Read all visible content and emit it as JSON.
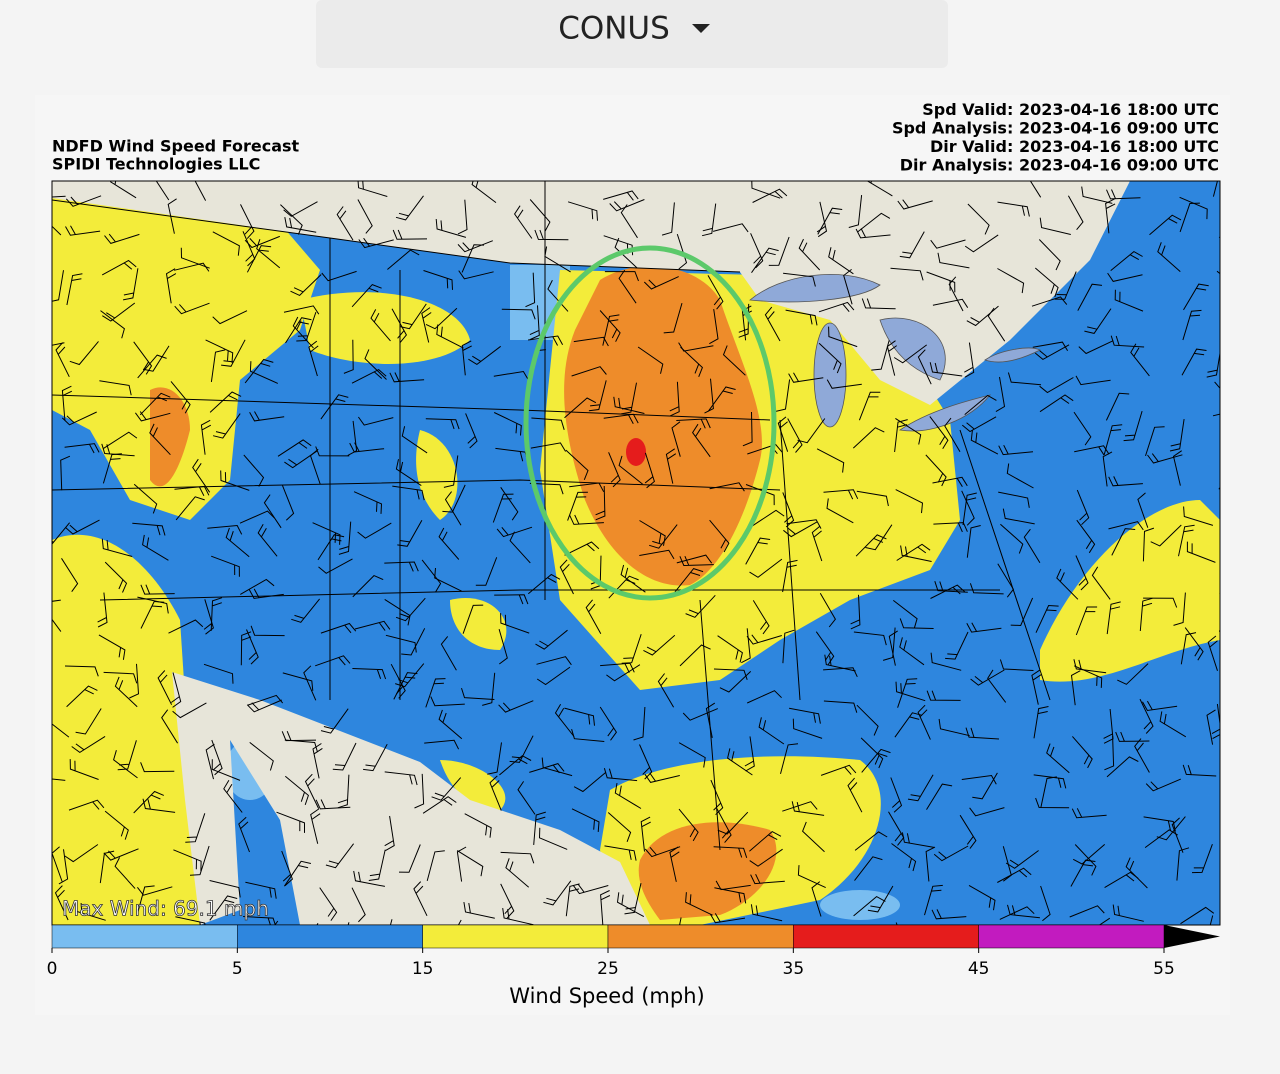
{
  "header": {
    "region": "CONUS"
  },
  "map": {
    "title": [
      "NDFD Wind Speed Forecast",
      "SPIDI Technologies LLC"
    ],
    "info": [
      {
        "label": "Spd Valid:",
        "value": "2023-04-16 18:00 UTC"
      },
      {
        "label": "Spd Analysis:",
        "value": "2023-04-16 09:00 UTC"
      },
      {
        "label": "Dir Valid:",
        "value": "2023-04-16 18:00 UTC"
      },
      {
        "label": "Dir Analysis:",
        "value": "2023-04-16 09:00 UTC"
      }
    ],
    "max_wind": "Max Wind: 69.1 mph"
  },
  "colorbar": {
    "ticks": [
      0,
      5,
      15,
      25,
      35,
      45,
      55
    ],
    "colors": [
      "#79bdf0",
      "#2e86de",
      "#f3ec3a",
      "#ee8c2a",
      "#e51c1c",
      "#c21bbf"
    ],
    "extend_color": "#000000",
    "label": "Wind Speed (mph)"
  }
}
